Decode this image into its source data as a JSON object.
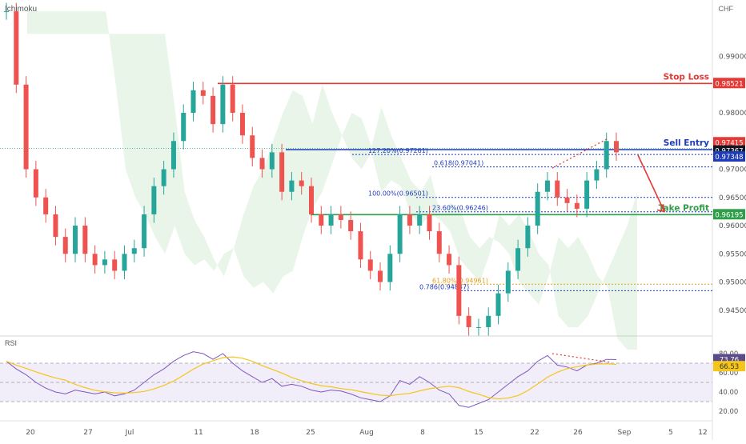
{
  "chart_data": {
    "type": "candlestick",
    "indicator": "Ichimoku",
    "currency": "CHF",
    "y_axis": {
      "ticks": [
        0.99,
        0.98,
        0.97,
        0.965,
        0.96,
        0.955,
        0.95,
        0.945
      ],
      "tick_labels": [
        "0.99000",
        "0.98000",
        "0.97000",
        "0.96500",
        "0.96000",
        "0.95500",
        "0.95000",
        "0.94500"
      ],
      "range": [
        0.941,
        1.0
      ]
    },
    "x_axis": {
      "tick_labels": [
        "20",
        "27",
        "Jul",
        "11",
        "18",
        "25",
        "Aug",
        "8",
        "15",
        "22",
        "26",
        "Sep",
        "5",
        "12"
      ]
    },
    "price_badges": [
      {
        "label": "0.98521",
        "value": 0.98521,
        "color": "#e53935"
      },
      {
        "label": "0.97415",
        "value": 0.97415,
        "color": "#e53935"
      },
      {
        "label": "0.97367",
        "value": 0.97367,
        "color": "#131722"
      },
      {
        "label": "0.97348",
        "value": 0.97348,
        "color": "#1e3bb8"
      },
      {
        "label": "0.96195",
        "value": 0.96195,
        "color": "#2e9e48"
      }
    ],
    "levels": [
      {
        "name": "Stop Loss",
        "value": 0.98521,
        "color": "#e53935"
      },
      {
        "name": "Sell Entry",
        "value": 0.97348,
        "color": "#1e3bb8"
      },
      {
        "name": "Take Profit",
        "value": 0.96195,
        "color": "#2e9e48"
      }
    ],
    "fib_labels": [
      {
        "text": "127.20%(0.97261)",
        "value": 0.97261
      },
      {
        "text": "0.618(0.97041)",
        "value": 0.97041
      },
      {
        "text": "100.00%(0.96501)",
        "value": 0.96501
      },
      {
        "text": "23.60%(0.96246)",
        "value": 0.96246
      },
      {
        "text": "61.80%(0.94961)",
        "value": 0.94961
      },
      {
        "text": "0.786(0.94847)",
        "value": 0.94847
      }
    ],
    "price_path": [
      0.998,
      0.985,
      0.97,
      0.965,
      0.962,
      0.958,
      0.955,
      0.96,
      0.955,
      0.953,
      0.954,
      0.952,
      0.955,
      0.956,
      0.962,
      0.967,
      0.97,
      0.975,
      0.98,
      0.984,
      0.983,
      0.978,
      0.985,
      0.98,
      0.976,
      0.972,
      0.97,
      0.973,
      0.966,
      0.968,
      0.967,
      0.962,
      0.96,
      0.962,
      0.961,
      0.959,
      0.954,
      0.952,
      0.95,
      0.955,
      0.962,
      0.96,
      0.962,
      0.959,
      0.955,
      0.953,
      0.944,
      0.942,
      0.942,
      0.944,
      0.948,
      0.952,
      0.956,
      0.96,
      0.966,
      0.968,
      0.965,
      0.964,
      0.963,
      0.968,
      0.97,
      0.975,
      0.973
    ],
    "rsi": {
      "name": "RSI",
      "value": 73.76,
      "ma_value": 66.53,
      "ticks": [
        80,
        60,
        40,
        20
      ],
      "tick_labels": [
        "80.00",
        "60.00",
        "40.00",
        "20.00"
      ],
      "badges": [
        {
          "label": "73.76"
        },
        {
          "label": "66.53"
        }
      ],
      "series": [
        72,
        64,
        58,
        50,
        44,
        40,
        38,
        42,
        40,
        38,
        40,
        36,
        38,
        42,
        50,
        58,
        64,
        72,
        78,
        82,
        80,
        74,
        80,
        70,
        62,
        56,
        50,
        54,
        46,
        48,
        46,
        42,
        40,
        42,
        41,
        38,
        34,
        32,
        30,
        36,
        52,
        48,
        56,
        50,
        42,
        38,
        26,
        24,
        28,
        32,
        40,
        48,
        56,
        62,
        72,
        78,
        68,
        66,
        62,
        68,
        70,
        74,
        73.76
      ]
    }
  }
}
